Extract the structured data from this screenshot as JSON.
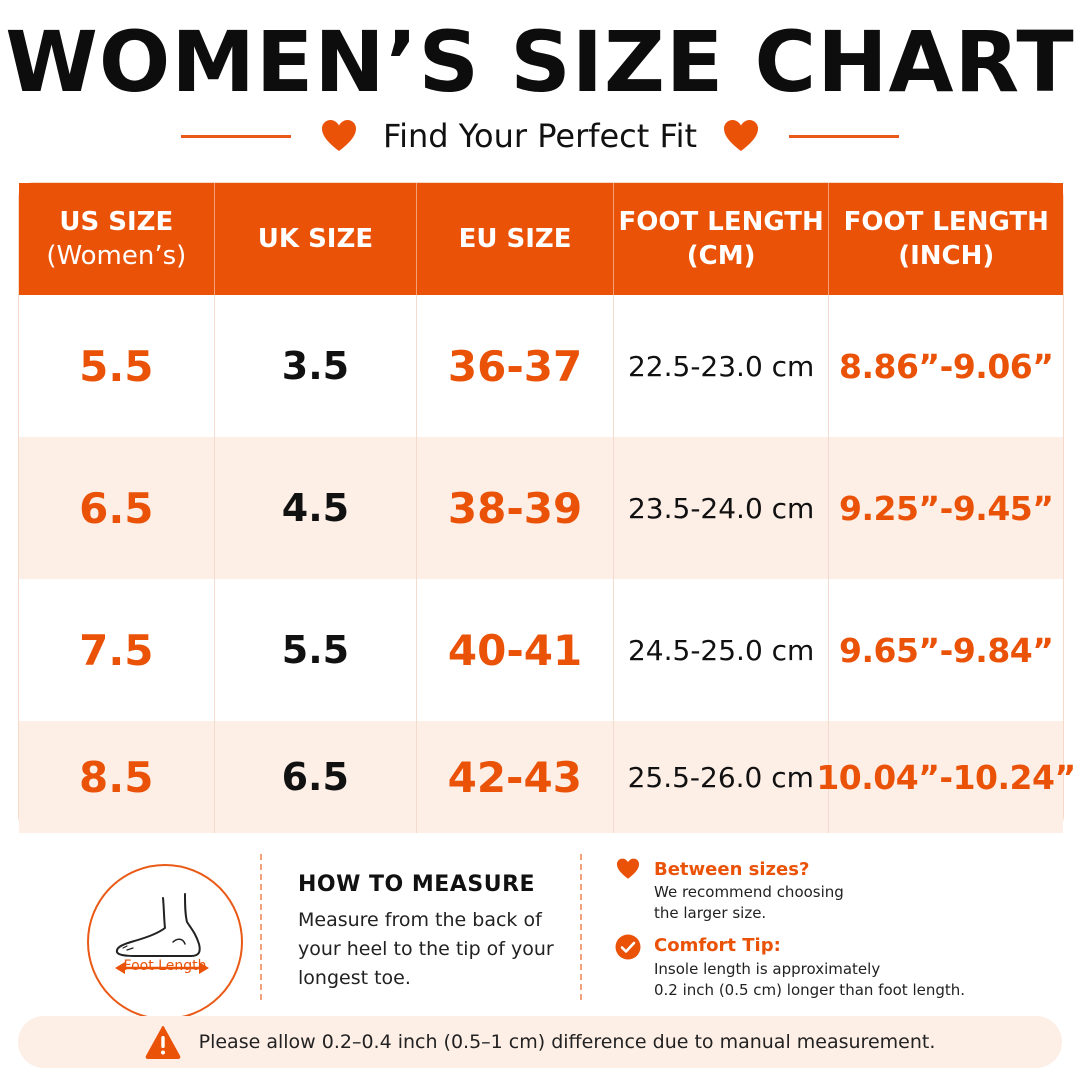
{
  "header": {
    "title": "WOMEN’S SIZE CHART",
    "subtitle": "Find Your Perfect Fit"
  },
  "colors": {
    "accent": "#ea5208",
    "row_alt": "#fdeee6",
    "text": "#111111"
  },
  "table": {
    "columns": [
      {
        "line1": "US SIZE",
        "line2": "(Women’s)"
      },
      {
        "line1": "UK SIZE",
        "line2": ""
      },
      {
        "line1": "EU SIZE",
        "line2": ""
      },
      {
        "line1": "FOOT LENGTH",
        "line2": "(CM)"
      },
      {
        "line1": "FOOT LENGTH",
        "line2": "(INCH)"
      }
    ],
    "rows": [
      {
        "us": "5.5",
        "uk": "3.5",
        "eu": "36-37",
        "cm": "22.5-23.0 cm",
        "inch": "8.86”-9.06”"
      },
      {
        "us": "6.5",
        "uk": "4.5",
        "eu": "38-39",
        "cm": "23.5-24.0 cm",
        "inch": "9.25”-9.45”"
      },
      {
        "us": "7.5",
        "uk": "5.5",
        "eu": "40-41",
        "cm": "24.5-25.0 cm",
        "inch": "9.65”-9.84”"
      },
      {
        "us": "8.5",
        "uk": "6.5",
        "eu": "42-43",
        "cm": "25.5-26.0 cm",
        "inch": "10.04”-10.24”"
      }
    ]
  },
  "measure": {
    "foot_label": "Foot Length",
    "icon": "foot-icon",
    "title": "HOW TO MEASURE",
    "text": "Measure from the back of your heel to the tip of your longest toe."
  },
  "tips": [
    {
      "icon": "heart-icon",
      "title": "Between sizes?",
      "text1": "We recommend choosing",
      "text2": "the larger size."
    },
    {
      "icon": "checkmark-icon",
      "title": "Comfort Tip:",
      "text1": "Insole length is approximately",
      "text2": "0.2 inch (0.5 cm) longer than foot length."
    }
  ],
  "notice": {
    "icon": "warning-icon",
    "text": "Please allow 0.2–0.4 inch (0.5–1 cm) difference due to manual measurement."
  }
}
